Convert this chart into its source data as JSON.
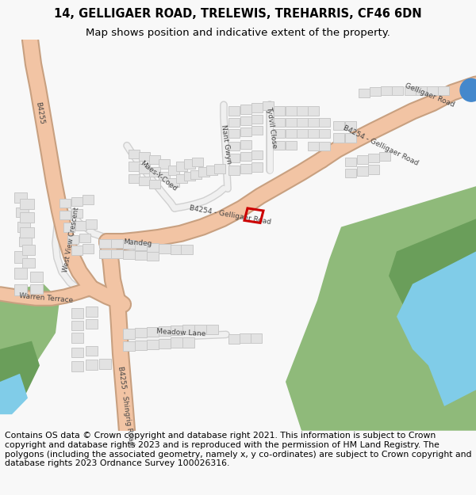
{
  "title_line1": "14, GELLIGAER ROAD, TRELEWIS, TREHARRIS, CF46 6DN",
  "title_line2": "Map shows position and indicative extent of the property.",
  "footer_text": "Contains OS data © Crown copyright and database right 2021. This information is subject to Crown copyright and database rights 2023 and is reproduced with the permission of HM Land Registry. The polygons (including the associated geometry, namely x, y co-ordinates) are subject to Crown copyright and database rights 2023 Ordnance Survey 100026316.",
  "bg_color": "#f8f8f8",
  "map_bg": "#ffffff",
  "road_main_color": "#f2c4a4",
  "road_outline_color": "#c8a080",
  "building_color": "#e2e2e2",
  "building_edge_color": "#c8c8c8",
  "green_color": "#8fba7a",
  "green_dark_color": "#6a9e5a",
  "water_color": "#80cce8",
  "property_color": "#cc0000",
  "blue_dot_color": "#4488cc",
  "title_fontsize": 10.5,
  "subtitle_fontsize": 9.5,
  "footer_fontsize": 7.8,
  "label_color": "#444444",
  "label_fontsize": 6.5
}
